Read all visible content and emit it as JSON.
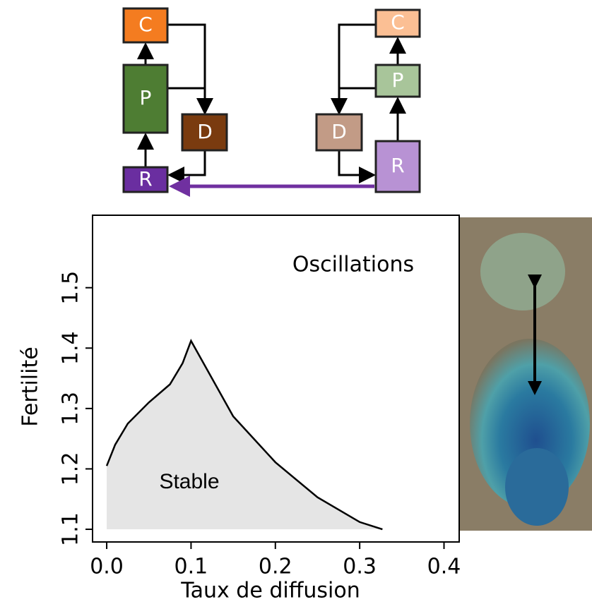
{
  "diagram": {
    "left": {
      "nodes": [
        "C",
        "P",
        "D",
        "R"
      ]
    },
    "right": {
      "nodes": [
        "C",
        "P",
        "D",
        "R"
      ]
    }
  },
  "chart_data": {
    "type": "area",
    "x_label": "Taux de diffusion",
    "y_label": "Fertilité",
    "x": [
      0,
      0.01,
      0.025,
      0.05,
      0.075,
      0.09,
      0.1,
      0.15,
      0.2,
      0.25,
      0.3,
      0.327
    ],
    "values": [
      1.205,
      1.24,
      1.275,
      1.31,
      1.34,
      1.375,
      1.412,
      1.287,
      1.211,
      1.153,
      1.112,
      1.1
    ],
    "color": "#000000",
    "fill": "#e5e5e5",
    "xlim": [
      -0.0168,
      0.418
    ],
    "ylim": [
      1.079,
      1.62
    ],
    "xticks": [
      {
        "value": 0,
        "label": "0.0"
      },
      0.1,
      0.2,
      0.3,
      0.4
    ],
    "yticks": [
      1.1,
      1.2,
      1.3,
      1.4,
      1.5
    ],
    "annotations": [
      "Oscillations",
      "Stable"
    ]
  }
}
